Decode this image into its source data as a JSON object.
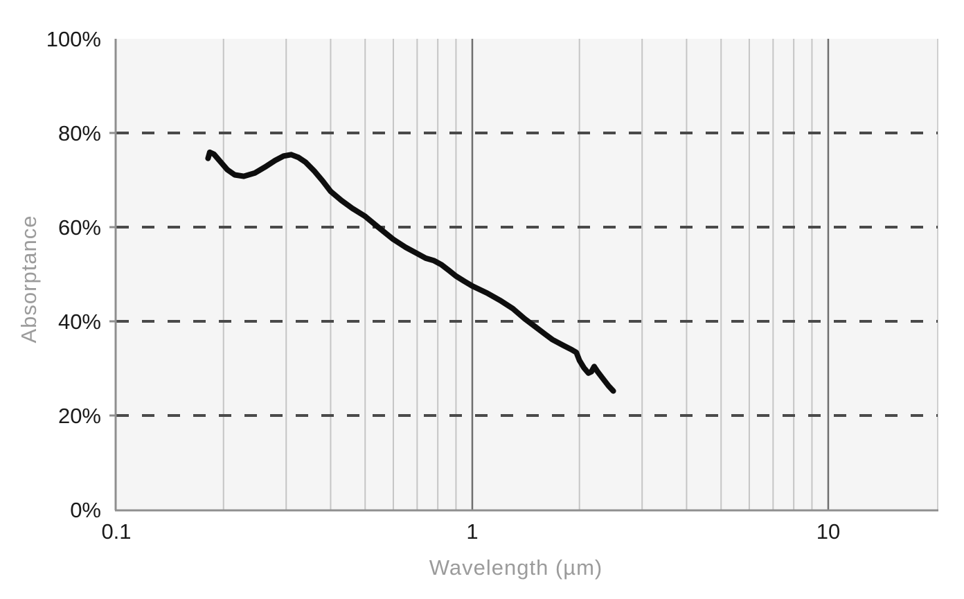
{
  "figure": {
    "background": "#ffffff"
  },
  "chart_data": {
    "type": "line",
    "title": "",
    "xlabel": "Wavelength (µm)",
    "ylabel": "Absorptance",
    "x_scale": "log",
    "xlim": [
      0.1,
      20.3
    ],
    "ylim": [
      0,
      100
    ],
    "grid": "on",
    "legend": "none",
    "x_ticks": [
      {
        "value": 0.1,
        "label": "0.1"
      },
      {
        "value": 1,
        "label": "1"
      },
      {
        "value": 10,
        "label": "10"
      }
    ],
    "x_minor_gridlines": [
      0.2,
      0.3,
      0.4,
      0.5,
      0.6,
      0.7,
      0.8,
      0.9,
      2,
      3,
      4,
      5,
      6,
      7,
      8,
      9
    ],
    "x_major_gridlines": [
      1,
      10
    ],
    "y_ticks": [
      {
        "value": 0,
        "label": "0%"
      },
      {
        "value": 20,
        "label": "20%"
      },
      {
        "value": 40,
        "label": "40%"
      },
      {
        "value": 60,
        "label": "60%"
      },
      {
        "value": 80,
        "label": "80%"
      },
      {
        "value": 100,
        "label": "100%"
      }
    ],
    "y_dashed_gridlines": [
      20,
      40,
      60,
      80
    ],
    "series": [
      {
        "name": "absorptance-curve",
        "color": "#0e0e0e",
        "points": [
          [
            0.181,
            74.6
          ],
          [
            0.183,
            75.9
          ],
          [
            0.188,
            75.5
          ],
          [
            0.195,
            74.1
          ],
          [
            0.205,
            72.2
          ],
          [
            0.215,
            71.1
          ],
          [
            0.228,
            70.8
          ],
          [
            0.245,
            71.5
          ],
          [
            0.262,
            72.8
          ],
          [
            0.28,
            74.2
          ],
          [
            0.295,
            75.1
          ],
          [
            0.31,
            75.4
          ],
          [
            0.325,
            74.8
          ],
          [
            0.34,
            73.8
          ],
          [
            0.36,
            71.9
          ],
          [
            0.38,
            69.8
          ],
          [
            0.4,
            67.6
          ],
          [
            0.43,
            65.6
          ],
          [
            0.46,
            64.0
          ],
          [
            0.5,
            62.3
          ],
          [
            0.55,
            59.7
          ],
          [
            0.6,
            57.4
          ],
          [
            0.65,
            55.7
          ],
          [
            0.7,
            54.4
          ],
          [
            0.74,
            53.4
          ],
          [
            0.78,
            52.9
          ],
          [
            0.82,
            52.0
          ],
          [
            0.86,
            50.8
          ],
          [
            0.9,
            49.6
          ],
          [
            0.95,
            48.5
          ],
          [
            1.0,
            47.5
          ],
          [
            1.1,
            46.0
          ],
          [
            1.2,
            44.4
          ],
          [
            1.3,
            42.7
          ],
          [
            1.4,
            40.6
          ],
          [
            1.5,
            38.9
          ],
          [
            1.6,
            37.3
          ],
          [
            1.68,
            36.1
          ],
          [
            1.8,
            34.9
          ],
          [
            1.9,
            34.0
          ],
          [
            1.96,
            33.4
          ],
          [
            2.0,
            31.7
          ],
          [
            2.06,
            30.1
          ],
          [
            2.12,
            29.0
          ],
          [
            2.16,
            29.3
          ],
          [
            2.2,
            30.4
          ],
          [
            2.25,
            29.3
          ],
          [
            2.33,
            27.8
          ],
          [
            2.42,
            26.2
          ],
          [
            2.49,
            25.2
          ]
        ]
      }
    ],
    "colors": {
      "plot_background": "#f5f5f5",
      "minor_gridline": "#c5c5c5",
      "major_gridline": "#6f6f6f",
      "dashed_gridline": "#4a4a4a",
      "axis_line": "#8f8f8f",
      "right_border": "#cfcfcf",
      "tick_label": "#1a1a1a",
      "axis_title": "#9b9b9b"
    }
  }
}
